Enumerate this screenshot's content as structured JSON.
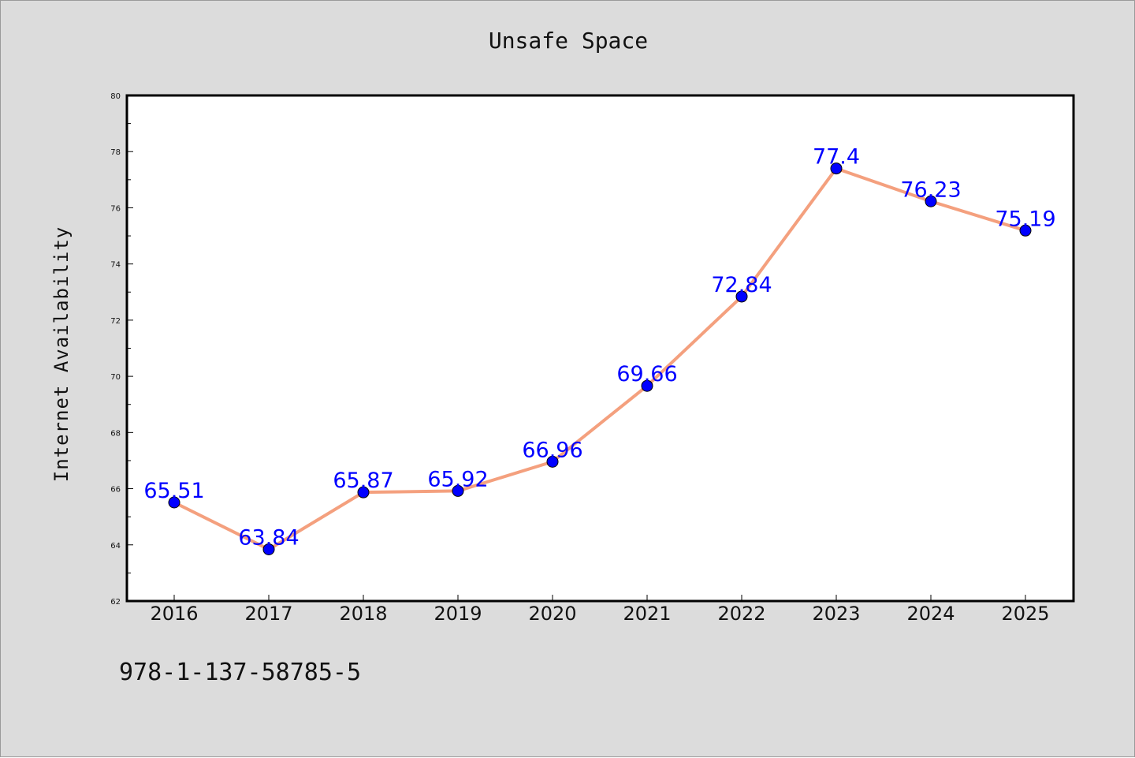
{
  "chart_data": {
    "type": "line",
    "title": "Unsafe Space",
    "xlabel": "",
    "ylabel": "Internet Availability",
    "categories": [
      "2016",
      "2017",
      "2018",
      "2019",
      "2020",
      "2021",
      "2022",
      "2023",
      "2024",
      "2025"
    ],
    "values": [
      65.51,
      63.84,
      65.87,
      65.92,
      66.96,
      69.66,
      72.84,
      77.4,
      76.23,
      75.19
    ],
    "data_labels": [
      "65.51",
      "63.84",
      "65.87",
      "65.92",
      "66.96",
      "69.66",
      "72.84",
      "77.4",
      "76.23",
      "75.19"
    ],
    "ylim": [
      62,
      80
    ],
    "yticks": [
      62,
      64,
      66,
      68,
      70,
      72,
      74,
      76,
      78,
      80
    ],
    "grid": false,
    "legend": "none",
    "line_color": "#f4a07e",
    "marker_color": "#0000ff",
    "label_color": "#0000ff"
  },
  "footer": {
    "code": "978-1-137-58785-5"
  },
  "colors": {
    "figure_background": "#dcdcdc",
    "plot_background": "#ffffff"
  }
}
